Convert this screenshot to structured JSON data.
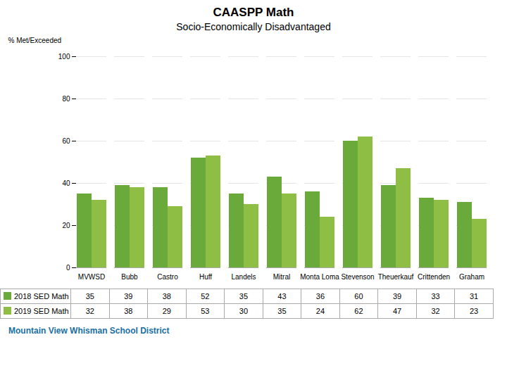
{
  "chart_data": {
    "type": "bar",
    "title": "CAASPP Math",
    "subtitle": "Socio-Economically Disadvantaged",
    "y_label": "% Met/Exceeded",
    "categories": [
      "MVWSD",
      "Bubb",
      "Castro",
      "Huff",
      "Landels",
      "Mitral",
      "Monta Loma",
      "Stevenson",
      "Theuerkauf",
      "Crittenden",
      "Graham"
    ],
    "series": [
      {
        "name": "2018 SED Math",
        "color": "#6aaa3a",
        "values": [
          35,
          39,
          38,
          52,
          35,
          43,
          36,
          60,
          39,
          33,
          31
        ]
      },
      {
        "name": "2019 SED Math",
        "color": "#8fbe45",
        "values": [
          32,
          38,
          29,
          53,
          30,
          35,
          24,
          62,
          47,
          32,
          23
        ]
      }
    ],
    "ylim": [
      0,
      100
    ],
    "yticks": [
      0,
      20,
      40,
      60,
      80,
      100
    ],
    "grid": true,
    "legend": "bottom",
    "annotations": [
      {
        "text": "Mountain View Whisman School District",
        "color": "#1a6fa0"
      }
    ]
  }
}
